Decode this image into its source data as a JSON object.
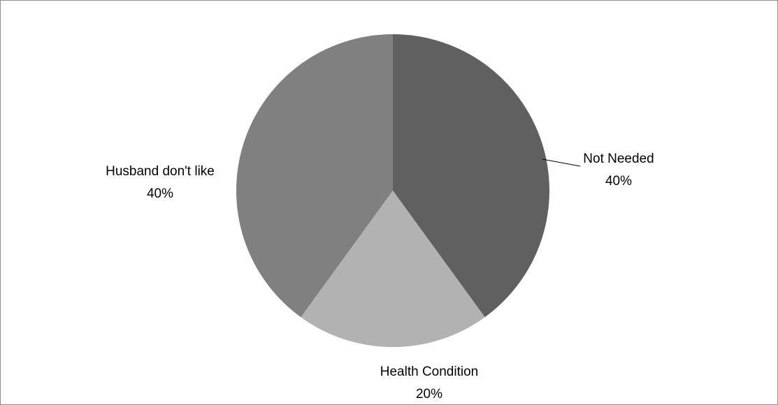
{
  "chart_data": {
    "type": "pie",
    "categories": [
      "Not Needed",
      "Health Condition",
      "Husband don't like"
    ],
    "values": [
      40,
      20,
      40
    ],
    "value_labels": [
      "40%",
      "20%",
      "40%"
    ],
    "colors": [
      "#606060",
      "#b2b2b2",
      "#808080"
    ]
  }
}
